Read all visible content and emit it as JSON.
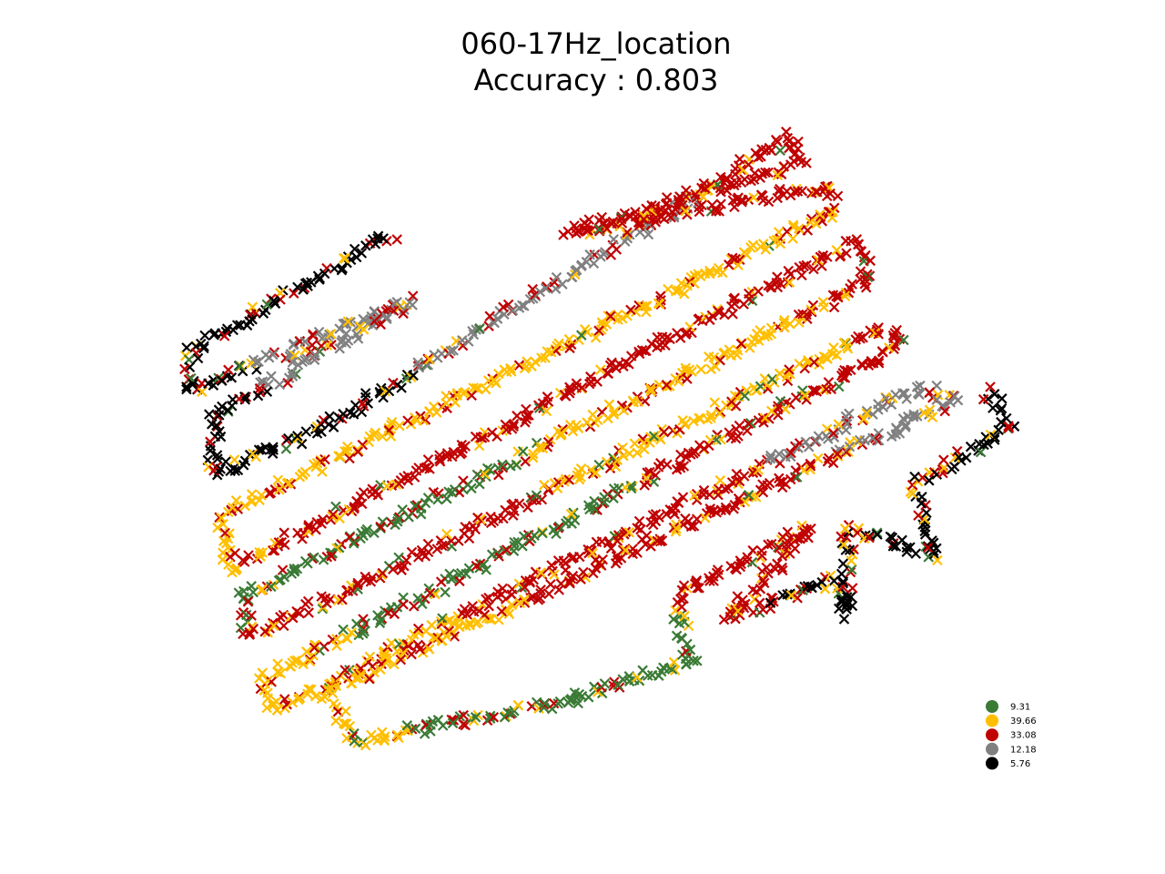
{
  "chart_data": {
    "type": "scatter",
    "title": "060-17Hz_location",
    "subtitle": "Accuracy : 0.803",
    "accuracy": 0.803,
    "axes_visible": false,
    "grid": false,
    "legend_placement": "lower-right",
    "classes": [
      {
        "label": "9.31",
        "color": "#3a7a35"
      },
      {
        "label": "39.66",
        "color": "#ffbf00"
      },
      {
        "label": "33.08",
        "color": "#c00000"
      },
      {
        "label": "12.18",
        "color": "#808080"
      },
      {
        "label": "5.76",
        "color": "#000000"
      }
    ],
    "track_segments": [
      [
        0.0,
        0.04,
        4
      ],
      [
        0.04,
        0.08,
        3
      ],
      [
        0.08,
        0.12,
        4
      ],
      [
        0.12,
        0.16,
        3
      ],
      [
        0.16,
        0.2,
        2
      ],
      [
        0.2,
        0.24,
        2
      ],
      [
        0.24,
        0.28,
        1
      ],
      [
        0.28,
        0.33,
        1
      ],
      [
        0.33,
        0.38,
        2
      ],
      [
        0.38,
        0.42,
        2
      ],
      [
        0.42,
        0.46,
        1
      ],
      [
        0.46,
        0.5,
        0
      ],
      [
        0.5,
        0.54,
        2
      ],
      [
        0.54,
        0.58,
        1
      ],
      [
        0.58,
        0.62,
        2
      ],
      [
        0.62,
        0.66,
        0
      ],
      [
        0.66,
        0.7,
        1
      ],
      [
        0.7,
        0.74,
        2
      ],
      [
        0.74,
        0.78,
        3
      ],
      [
        0.78,
        0.82,
        2
      ],
      [
        0.82,
        0.86,
        1
      ],
      [
        0.86,
        0.9,
        0
      ],
      [
        0.9,
        0.94,
        2
      ],
      [
        0.94,
        1.0,
        4
      ]
    ],
    "marker": "x"
  }
}
